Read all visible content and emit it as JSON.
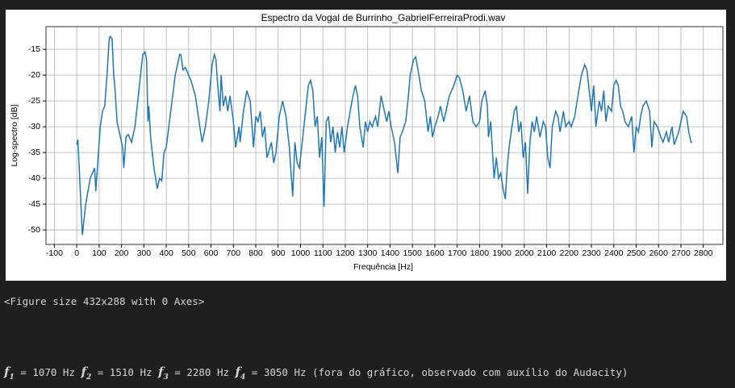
{
  "chart_data": {
    "type": "line",
    "title": "Espectro da Vogal de Burrinho_GabrielFerreiraProdi.wav",
    "x_label": "Frequência [Hz]",
    "y_label": "Log-spectro [dB]",
    "x": [
      0,
      5,
      25,
      40,
      60,
      80,
      85,
      105,
      115,
      125,
      135,
      145,
      150,
      158,
      165,
      170,
      180,
      195,
      205,
      210,
      220,
      230,
      245,
      260,
      280,
      295,
      305,
      312,
      318,
      322,
      330,
      345,
      360,
      370,
      380,
      390,
      400,
      420,
      440,
      460,
      465,
      475,
      485,
      500,
      510,
      530,
      550,
      560,
      575,
      590,
      605,
      615,
      622,
      630,
      640,
      645,
      655,
      665,
      675,
      685,
      700,
      710,
      725,
      730,
      745,
      760,
      775,
      790,
      800,
      810,
      820,
      830,
      840,
      850,
      870,
      880,
      890,
      905,
      920,
      935,
      950,
      965,
      975,
      985,
      995,
      1010,
      1020,
      1035,
      1045,
      1055,
      1065,
      1075,
      1085,
      1095,
      1105,
      1115,
      1125,
      1135,
      1145,
      1155,
      1165,
      1175,
      1185,
      1195,
      1210,
      1230,
      1245,
      1255,
      1265,
      1280,
      1290,
      1300,
      1310,
      1320,
      1335,
      1345,
      1360,
      1375,
      1385,
      1395,
      1405,
      1420,
      1435,
      1445,
      1455,
      1470,
      1480,
      1490,
      1505,
      1515,
      1525,
      1540,
      1555,
      1570,
      1580,
      1590,
      1600,
      1615,
      1625,
      1640,
      1650,
      1665,
      1685,
      1700,
      1710,
      1725,
      1740,
      1755,
      1770,
      1785,
      1800,
      1810,
      1825,
      1835,
      1840,
      1850,
      1865,
      1875,
      1885,
      1895,
      1905,
      1915,
      1925,
      1935,
      1945,
      1955,
      1965,
      1975,
      1985,
      1995,
      2005,
      2015,
      2025,
      2035,
      2045,
      2055,
      2070,
      2085,
      2095,
      2105,
      2115,
      2125,
      2140,
      2150,
      2160,
      2175,
      2185,
      2200,
      2210,
      2225,
      2240,
      2255,
      2270,
      2280,
      2290,
      2300,
      2310,
      2320,
      2335,
      2345,
      2355,
      2365,
      2375,
      2390,
      2400,
      2410,
      2420,
      2430,
      2440,
      2450,
      2465,
      2480,
      2490,
      2500,
      2510,
      2520,
      2530,
      2545,
      2560,
      2570,
      2580,
      2595,
      2610,
      2620,
      2635,
      2645,
      2660,
      2670,
      2690,
      2710,
      2725,
      2735,
      2745,
      2750
    ],
    "series": [
      {
        "name": "Log-spectro",
        "color": "#1f77b4",
        "values": [
          -33.5,
          -32.5,
          -51,
          -45,
          -40,
          -38,
          -42.5,
          -30,
          -27,
          -26,
          -20,
          -13,
          -12.5,
          -13,
          -20,
          -22,
          -29,
          -32,
          -34,
          -38,
          -32,
          -31.5,
          -33,
          -30,
          -22,
          -16,
          -15.5,
          -17,
          -29,
          -26,
          -32,
          -38,
          -42,
          -40,
          -40.5,
          -35,
          -34,
          -27,
          -20,
          -16,
          -16,
          -19,
          -18.5,
          -20,
          -21,
          -24,
          -30,
          -33,
          -30,
          -25,
          -18,
          -16,
          -17,
          -22,
          -27,
          -20,
          -26,
          -24,
          -27,
          -24,
          -29,
          -34,
          -30,
          -33,
          -27,
          -23,
          -25,
          -34,
          -28,
          -29,
          -27,
          -32,
          -30,
          -36,
          -33,
          -37,
          -35,
          -28,
          -25,
          -28,
          -34,
          -43.5,
          -33,
          -37,
          -38,
          -32,
          -28,
          -22,
          -21,
          -23,
          -30,
          -28,
          -36,
          -32,
          -45.5,
          -29,
          -28,
          -33,
          -30,
          -35,
          -31,
          -34,
          -30,
          -35,
          -30,
          -25,
          -22,
          -24,
          -30,
          -34,
          -29,
          -31,
          -29,
          -30,
          -28,
          -30,
          -24,
          -27,
          -29,
          -27,
          -30,
          -33,
          -39,
          -32,
          -31,
          -29,
          -25,
          -20,
          -17,
          -16.5,
          -19,
          -23,
          -25,
          -31,
          -28,
          -32,
          -30,
          -28,
          -26,
          -29,
          -27,
          -24,
          -22,
          -20,
          -20.5,
          -23,
          -27,
          -24,
          -29,
          -30,
          -29,
          -25,
          -23,
          -26,
          -32,
          -29,
          -40,
          -36,
          -40,
          -39,
          -42,
          -44,
          -37,
          -33,
          -30,
          -27,
          -26,
          -31,
          -29,
          -36,
          -33,
          -43,
          -33,
          -29,
          -31,
          -28,
          -32,
          -29,
          -30,
          -36,
          -38,
          -30,
          -27,
          -28,
          -31,
          -27,
          -30,
          -29,
          -30,
          -28,
          -24,
          -20,
          -18,
          -19,
          -23,
          -27,
          -22,
          -30,
          -25,
          -27,
          -23,
          -29,
          -26,
          -27,
          -22,
          -21,
          -22,
          -26,
          -27,
          -29,
          -30,
          -28,
          -35,
          -30,
          -31,
          -28,
          -26,
          -25,
          -27,
          -34,
          -29,
          -30,
          -32,
          -33,
          -31,
          -33,
          -30,
          -33.5,
          -31,
          -27,
          -28,
          -31,
          -33,
          -33
        ]
      }
    ],
    "xlim": [
      -137.5,
      2887.5
    ],
    "ylim": [
      -52.8,
      -10.6
    ],
    "xticks": [
      -100,
      0,
      100,
      200,
      300,
      400,
      500,
      600,
      700,
      800,
      900,
      1000,
      1100,
      1200,
      1300,
      1400,
      1500,
      1600,
      1700,
      1800,
      1900,
      2000,
      2100,
      2200,
      2300,
      2400,
      2500,
      2600,
      2700,
      2800
    ],
    "yticks": [
      -50,
      -45,
      -40,
      -35,
      -30,
      -25,
      -20,
      -15
    ],
    "grid": true
  },
  "output": "<Figure size 432x288 with 0 Axes>",
  "formants": [
    {
      "symbol": "f",
      "sub": "1",
      "text": " = 1070 Hz "
    },
    {
      "symbol": "f",
      "sub": "2",
      "text": " = 1510 Hz "
    },
    {
      "symbol": "f",
      "sub": "3",
      "text": " = 2280 Hz "
    },
    {
      "symbol": "f",
      "sub": "4",
      "text": " = 3050 Hz (fora do gráfico, observado com auxílio do Audacity)"
    }
  ]
}
